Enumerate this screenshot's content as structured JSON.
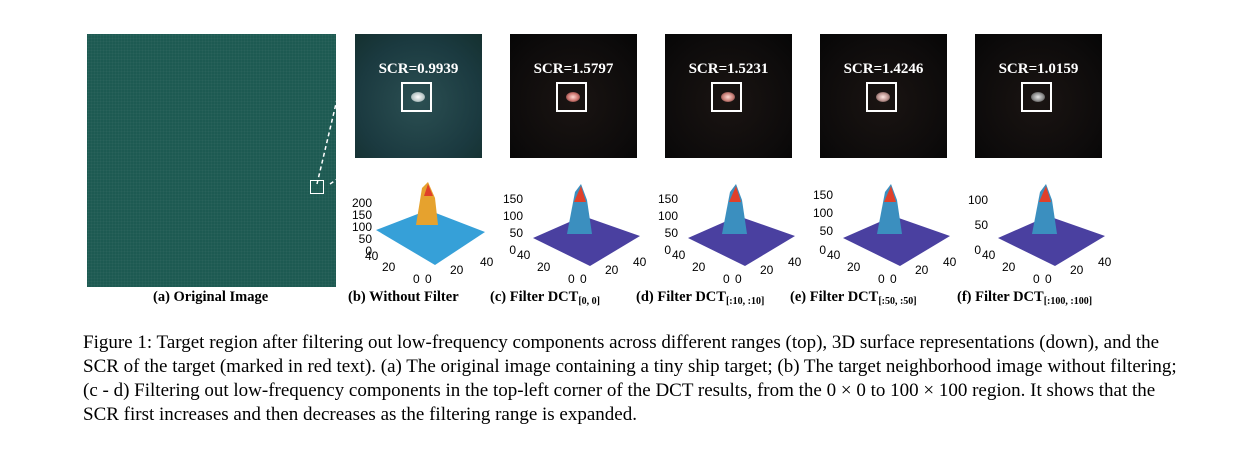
{
  "panels": [
    {
      "scr": "SCR=0.9939",
      "yticks": [
        "200",
        "150",
        "100",
        "50",
        "0"
      ],
      "caption": "(b) Without Filter",
      "sub": ""
    },
    {
      "scr": "SCR=1.5797",
      "yticks": [
        "150",
        "100",
        "50",
        "0"
      ],
      "caption": "(c) Filter DCT",
      "sub": "[0, 0]"
    },
    {
      "scr": "SCR=1.5231",
      "yticks": [
        "150",
        "100",
        "50",
        "0"
      ],
      "caption": "(d) Filter DCT",
      "sub": "[:10, :10]"
    },
    {
      "scr": "SCR=1.4246",
      "yticks": [
        "150",
        "100",
        "50",
        "0"
      ],
      "caption": "(e) Filter DCT",
      "sub": "[:50, :50]"
    },
    {
      "scr": "SCR=1.0159",
      "yticks": [
        "100",
        "50",
        "0"
      ],
      "caption": "(f) Filter DCT",
      "sub": "[:100, :100]"
    }
  ],
  "xticks": {
    "left": [
      "40",
      "20",
      "0"
    ],
    "right": [
      "0",
      "20",
      "40"
    ]
  },
  "original_caption": "(a) Original Image",
  "figure_caption": "Figure 1: Target region after filtering out low-frequency components across different ranges (top), 3D surface representations (down), and the SCR of the target (marked in red text). (a) The original image containing a tiny ship target; (b) The target neighborhood image without filtering; (c - d) Filtering out low-frequency components in the top-left corner of the DCT results, from the 0 × 0 to 100 × 100 region. It shows that the SCR first increases and then decreases as the filtering range is expanded.",
  "colors": {
    "sea": "#1d5a52",
    "surface_b": "#39a6e0",
    "surface_filtered": "#4a40a0",
    "peak": "#e0402a"
  }
}
